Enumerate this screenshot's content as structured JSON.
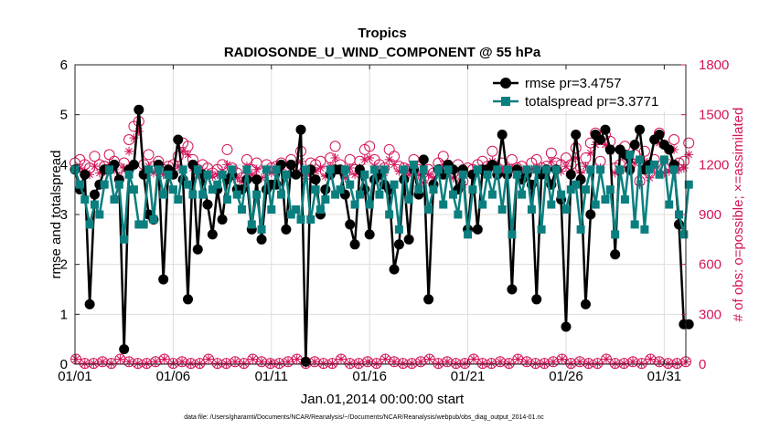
{
  "colors": {
    "rmse": "#000000",
    "spread": "#0b7f7f",
    "obs": "#d4145a",
    "grid": "#dddddd",
    "axis": "#222222"
  },
  "chart_data": {
    "type": "line",
    "title": "Tropics",
    "subtitle": "RADIOSONDE_U_WIND_COMPONENT @ 55 hPa",
    "xlabel": "Jan.01,2014 00:00:00 start",
    "ylabel": "rmse and totalspread",
    "ylabel_right": "# of obs: o=possible; ×=assimilated",
    "footnote": "data file: /Users/gharamti/Documents/NCAR/Reanalysis/~/Documents/NCAR/Reanalysis/webpub/obs_diag_output_2014-01.nc",
    "xlim": [
      1,
      32.1
    ],
    "ylim": [
      0,
      6
    ],
    "ylim_right": [
      0,
      1800
    ],
    "xticks": [
      1,
      6,
      11,
      16,
      21,
      26,
      31
    ],
    "xtick_labels": [
      "01/01",
      "01/06",
      "01/11",
      "01/16",
      "01/21",
      "01/26",
      "01/31"
    ],
    "yticks": [
      0,
      1,
      2,
      3,
      4,
      5,
      6
    ],
    "yticks_right": [
      0,
      300,
      600,
      900,
      1200,
      1500,
      1800
    ],
    "legend": {
      "position": "top-right",
      "entries": [
        "rmse pr=3.4757",
        "totalspread pr=3.3771"
      ]
    },
    "x_start": 1,
    "x_step": 0.25,
    "series": [
      {
        "name": "rmse",
        "axis": "left",
        "marker": "circle",
        "values": [
          3.9,
          3.5,
          3.8,
          1.2,
          3.4,
          3.6,
          3.9,
          3.9,
          4.0,
          3.7,
          0.3,
          3.9,
          4.0,
          5.1,
          3.8,
          3.0,
          2.9,
          4.0,
          1.7,
          3.9,
          3.8,
          4.5,
          3.7,
          1.3,
          4.0,
          2.3,
          3.8,
          3.2,
          2.6,
          3.5,
          2.9,
          3.7,
          3.8,
          3.5,
          3.5,
          3.7,
          2.7,
          3.7,
          2.5,
          3.5,
          3.6,
          3.6,
          4.0,
          2.7,
          4.0,
          3.8,
          4.7,
          0.05,
          3.9,
          3.7,
          3.0,
          3.5,
          3.8,
          3.9,
          3.9,
          3.4,
          2.8,
          2.4,
          3.9,
          3.5,
          2.6,
          3.7,
          3.8,
          3.6,
          3.5,
          1.9,
          2.4,
          3.7,
          2.5,
          3.9,
          3.4,
          4.1,
          1.3,
          3.6,
          3.9,
          3.8,
          4.0,
          3.9,
          3.5,
          3.9,
          2.7,
          3.8,
          2.7,
          3.9,
          3.9,
          4.0,
          3.8,
          4.6,
          3.8,
          1.5,
          3.9,
          3.7,
          3.8,
          3.6,
          1.3,
          3.8,
          3.9,
          3.6,
          3.9,
          3.3,
          0.75,
          3.8,
          4.6,
          3.7,
          1.2,
          3.0,
          4.6,
          4.5,
          4.7,
          4.3,
          2.2,
          4.3,
          4.2,
          3.9,
          4.4,
          4.7,
          3.9,
          4.0,
          4.5,
          4.6,
          4.4,
          4.3,
          4.0,
          2.8,
          0.8,
          0.8
        ]
      },
      {
        "name": "totalspread",
        "axis": "left",
        "marker": "square",
        "values": [
          3.9,
          3.6,
          3.3,
          2.8,
          3.2,
          3.0,
          3.6,
          3.9,
          3.3,
          3.6,
          2.5,
          3.8,
          3.5,
          2.8,
          2.8,
          3.9,
          2.9,
          3.9,
          3.4,
          3.8,
          3.5,
          3.3,
          3.9,
          3.6,
          3.4,
          3.9,
          3.4,
          3.8,
          3.5,
          3.6,
          3.8,
          3.3,
          3.9,
          3.4,
          3.1,
          3.9,
          2.8,
          3.4,
          2.7,
          3.9,
          3.1,
          3.9,
          3.4,
          3.8,
          3.0,
          3.1,
          2.9,
          3.9,
          2.9,
          3.5,
          3.1,
          3.3,
          3.9,
          3.4,
          3.5,
          3.9,
          3.6,
          3.2,
          3.4,
          3.8,
          3.2,
          3.9,
          3.4,
          3.9,
          3.0,
          3.6,
          2.7,
          3.9,
          3.3,
          4.0,
          3.5,
          3.9,
          3.1,
          3.5,
          3.9,
          3.2,
          3.9,
          3.4,
          3.0,
          3.8,
          2.6,
          3.5,
          3.9,
          3.2,
          3.8,
          3.4,
          3.9,
          3.1,
          3.9,
          2.6,
          3.8,
          3.4,
          3.9,
          3.1,
          3.9,
          2.7,
          3.9,
          3.2,
          3.9,
          3.4,
          3.1,
          3.5,
          3.6,
          2.7,
          3.5,
          3.9,
          3.2,
          3.9,
          3.3,
          3.5,
          2.6,
          3.9,
          3.3,
          4.2,
          2.8,
          4.1,
          2.7,
          3.9,
          4.0,
          3.8,
          4.1,
          3.2,
          3.9,
          3.0,
          2.6,
          3.6
        ]
      },
      {
        "name": "possible",
        "axis": "right",
        "marker": "circle-open",
        "values": [
          1210,
          1230,
          1200,
          1180,
          1250,
          1200,
          1190,
          1260,
          1220,
          1180,
          1210,
          1350,
          1430,
          1460,
          1200,
          1260,
          1190,
          1220,
          1170,
          1190,
          1200,
          1250,
          1330,
          1310,
          1230,
          1170,
          1200,
          1180,
          1150,
          1170,
          1200,
          1290,
          1180,
          1150,
          1120,
          1230,
          1170,
          1210,
          1150,
          1200,
          1180,
          1190,
          1210,
          1170,
          1230,
          1190,
          1280,
          1160,
          1210,
          1200,
          1220,
          1160,
          1240,
          1310,
          1200,
          1150,
          1230,
          1170,
          1220,
          1290,
          1310,
          1230,
          1200,
          1180,
          1290,
          1250,
          1190,
          1180,
          1170,
          1230,
          1170,
          1120,
          1170,
          1150,
          1210,
          1250,
          1180,
          1150,
          1200,
          1100,
          1180,
          1170,
          1200,
          1220,
          1190,
          1280,
          1180,
          1210,
          1170,
          1230,
          1180,
          1190,
          1160,
          1210,
          1230,
          1180,
          1190,
          1270,
          1210,
          1200,
          1240,
          1200,
          1300,
          1180,
          1240,
          1330,
          1390,
          1220,
          1380,
          1340,
          1180,
          1200,
          1310,
          1190,
          1260,
          1100,
          1280,
          1150,
          1230,
          1390,
          1180,
          1200,
          1350,
          1210,
          1220,
          1330
        ]
      },
      {
        "name": "assimilated",
        "axis": "right",
        "marker": "asterisk",
        "values": [
          1170,
          1180,
          1160,
          1140,
          1190,
          1150,
          1160,
          1200,
          1170,
          1130,
          1180,
          1280,
          1360,
          1400,
          1160,
          1190,
          1150,
          1180,
          1140,
          1150,
          1160,
          1190,
          1280,
          1260,
          1180,
          1140,
          1160,
          1150,
          1130,
          1140,
          1160,
          1200,
          1150,
          1120,
          1100,
          1190,
          1140,
          1170,
          1120,
          1160,
          1150,
          1160,
          1170,
          1140,
          1180,
          1150,
          1220,
          1130,
          1170,
          1160,
          1180,
          1130,
          1190,
          1240,
          1160,
          1120,
          1180,
          1140,
          1180,
          1230,
          1240,
          1190,
          1160,
          1150,
          1230,
          1200,
          1160,
          1150,
          1140,
          1190,
          1140,
          1090,
          1140,
          1120,
          1170,
          1200,
          1150,
          1120,
          1160,
          1080,
          1150,
          1140,
          1160,
          1180,
          1160,
          1220,
          1150,
          1170,
          1140,
          1180,
          1150,
          1160,
          1130,
          1170,
          1180,
          1150,
          1160,
          1220,
          1170,
          1160,
          1190,
          1160,
          1240,
          1150,
          1190,
          1270,
          1320,
          1180,
          1320,
          1280,
          1150,
          1160,
          1250,
          1160,
          1210,
          1080,
          1220,
          1120,
          1190,
          1330,
          1150,
          1160,
          1290,
          1170,
          1180,
          1260
        ]
      }
    ]
  }
}
